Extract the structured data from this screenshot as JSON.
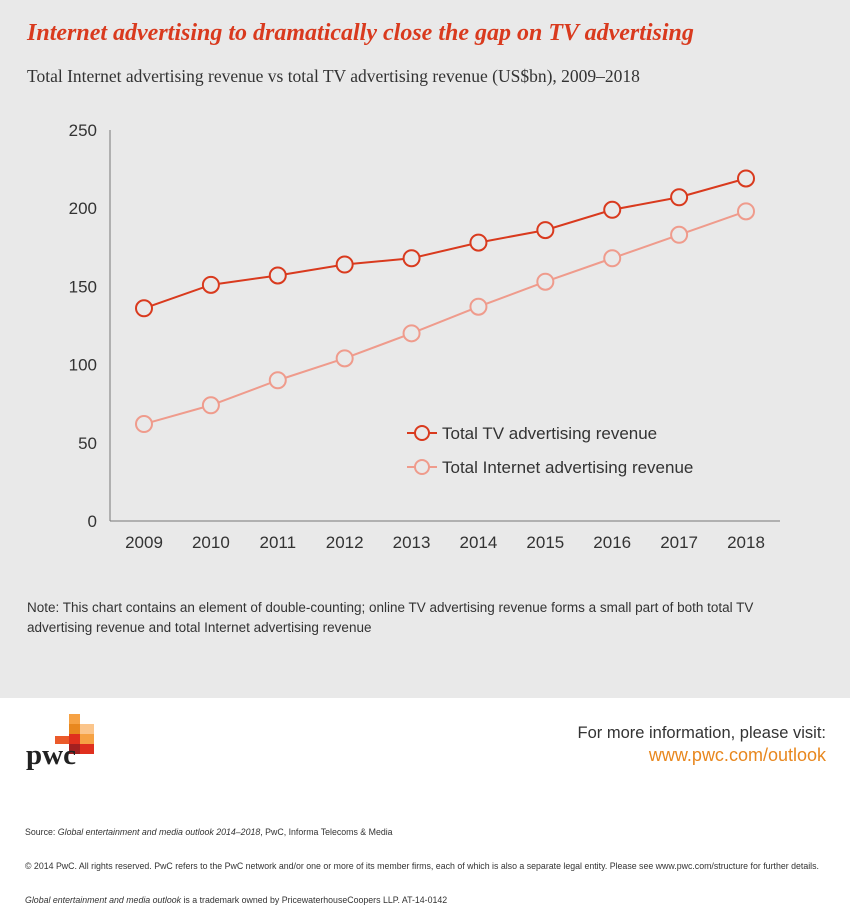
{
  "header": {
    "title": "Internet advertising to dramatically close the gap on TV advertising",
    "subtitle": "Total Internet advertising revenue vs total TV advertising revenue (US$bn), 2009–2018"
  },
  "chart_data": {
    "type": "line",
    "title": "Internet advertising to dramatically close the gap on TV advertising",
    "subtitle": "Total Internet advertising revenue vs total TV advertising revenue (US$bn), 2009–2018",
    "xlabel": "",
    "ylabel": "",
    "x": [
      "2009",
      "2010",
      "2011",
      "2012",
      "2013",
      "2014",
      "2015",
      "2016",
      "2017",
      "2018"
    ],
    "ylim": [
      0,
      250
    ],
    "yticks": [
      0,
      50,
      100,
      150,
      200,
      250
    ],
    "grid": false,
    "legend_position": "center-right",
    "series": [
      {
        "name": "Total TV advertising revenue",
        "color": "#d93a1e",
        "values": [
          136,
          151,
          157,
          164,
          168,
          178,
          186,
          199,
          207,
          219
        ]
      },
      {
        "name": "Total Internet advertising revenue",
        "color": "#ef9b8c",
        "values": [
          62,
          74,
          90,
          104,
          120,
          137,
          153,
          168,
          183,
          198
        ]
      }
    ]
  },
  "note": "Note: This chart contains an element of double-counting; online TV advertising revenue forms a small part of both total TV advertising revenue and total Internet advertising revenue",
  "branding": {
    "logo_text": "pwc",
    "logo_colors": [
      "#fbc58b",
      "#f6a244",
      "#e8871e",
      "#e0301e",
      "#a32020",
      "#eb5a2a"
    ]
  },
  "info": {
    "text": "For more information, please visit:",
    "url": "www.pwc.com/outlook"
  },
  "footer": {
    "source_prefix": "Source: ",
    "source_title": "Global entertainment and media outlook 2014–2018",
    "source_rest": ", PwC, Informa Telecoms & Media",
    "copyright": "© 2014 PwC. All rights reserved. PwC refers to the PwC network and/or one or more of its member firms, each of which is also a separate legal entity. Please see www.pwc.com/structure for further details.",
    "trademark_title": "Global entertainment and media outlook",
    "trademark_rest": " is a trademark owned by PricewaterhouseCoopers LLP. AT-14-0142"
  }
}
